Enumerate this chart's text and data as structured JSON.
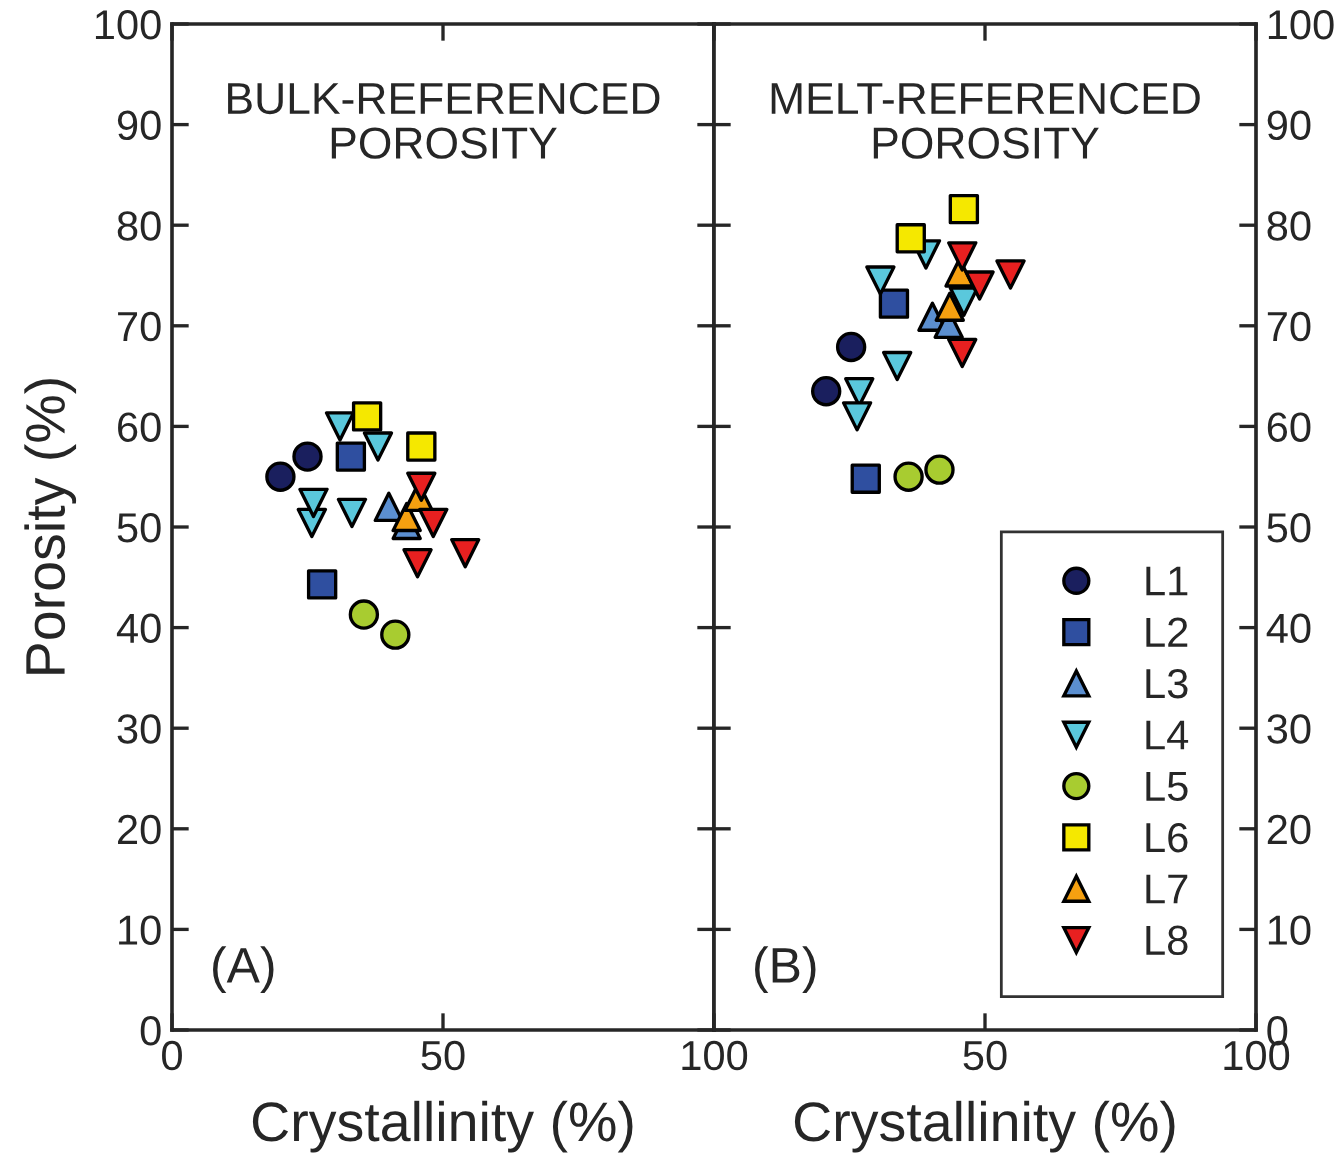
{
  "chart_data": [
    {
      "type": "scatter",
      "xlabel": "Crystallinity (%)",
      "ylabel": "Porosity (%)",
      "annotations": [
        "BULK-REFERENCED\nPOROSITY",
        "(A)"
      ],
      "xlim": [
        0,
        100
      ],
      "xticks": [
        0,
        50,
        100
      ],
      "ylim": [
        0,
        100
      ],
      "yticks": [
        0,
        10,
        20,
        30,
        40,
        50,
        60,
        70,
        80,
        90,
        100
      ],
      "grid": false,
      "legend": false,
      "series": [
        {
          "color": "#1a1f5e",
          "marker": "circle",
          "x": [
            20,
            25
          ],
          "values": [
            55,
            57
          ]
        },
        {
          "color": "#2f4fa0",
          "marker": "square",
          "x": [
            27.7,
            33
          ],
          "values": [
            44.3,
            57
          ]
        },
        {
          "color": "#5b8fd0",
          "marker": "triangle",
          "x": [
            40,
            43.3
          ],
          "values": [
            52,
            50.2
          ]
        },
        {
          "color": "#5ac8dc",
          "marker": "triangle_down",
          "x": [
            25.8,
            26.1,
            31,
            33.2,
            38
          ],
          "values": [
            50.4,
            52.4,
            60,
            51.4,
            58
          ]
        },
        {
          "color": "#a8cc30",
          "marker": "circle",
          "x": [
            35.4,
            41.2
          ],
          "values": [
            41.3,
            39.3
          ]
        },
        {
          "color": "#f5e800",
          "marker": "square",
          "x": [
            36,
            46
          ],
          "values": [
            61,
            58
          ]
        },
        {
          "color": "#f5a010",
          "marker": "triangle",
          "x": [
            43.3,
            45.5
          ],
          "values": [
            51,
            53
          ]
        },
        {
          "color": "#e82020",
          "marker": "triangle_down",
          "x": [
            46,
            48.2,
            45.3,
            54.1
          ],
          "values": [
            54,
            50.4,
            46.4,
            47.4
          ]
        }
      ]
    },
    {
      "type": "scatter",
      "xlabel": "Crystallinity (%)",
      "annotations": [
        "MELT-REFERENCED\nPOROSITY",
        "(B)"
      ],
      "xlim": [
        0,
        100
      ],
      "xticks": [
        {
          "value": 0,
          "label": null
        },
        50,
        100
      ],
      "y2lim": [
        0,
        100
      ],
      "y2ticks": [
        0,
        10,
        20,
        30,
        40,
        50,
        60,
        70,
        80,
        90,
        100
      ],
      "grid": false,
      "legend": "bottom right",
      "series": [
        {
          "name": "L1",
          "axis": "y2",
          "color": "#1a1f5e",
          "marker": "circle",
          "x": [
            25.3,
            20.7
          ],
          "values": [
            67.9,
            63.5
          ]
        },
        {
          "name": "L2",
          "axis": "y2",
          "color": "#2f4fa0",
          "marker": "square",
          "x": [
            33.2,
            28
          ],
          "values": [
            72.2,
            54.8
          ]
        },
        {
          "name": "L3",
          "axis": "y2",
          "color": "#5b8fd0",
          "marker": "triangle",
          "x": [
            40.3,
            43.3
          ],
          "values": [
            70.9,
            70.2
          ]
        },
        {
          "name": "L4",
          "axis": "y2",
          "color": "#5ac8dc",
          "marker": "triangle_down",
          "x": [
            30.7,
            39.1,
            33.8,
            26.8,
            26.4,
            46.1
          ],
          "values": [
            74.5,
            77.1,
            66,
            63.4,
            61,
            72.4
          ]
        },
        {
          "name": "L5",
          "axis": "y2",
          "color": "#a8cc30",
          "marker": "circle",
          "x": [
            35.9,
            41.6
          ],
          "values": [
            55,
            55.7
          ]
        },
        {
          "name": "L6",
          "axis": "y2",
          "color": "#f5e800",
          "marker": "square",
          "x": [
            36.3,
            46.1
          ],
          "values": [
            78.7,
            81.6
          ]
        },
        {
          "name": "L7",
          "axis": "y2",
          "color": "#f5a010",
          "marker": "triangle",
          "x": [
            45.3,
            43.5
          ],
          "values": [
            75.3,
            71.9
          ]
        },
        {
          "name": "L8",
          "axis": "y2",
          "color": "#e82020",
          "marker": "triangle_down",
          "x": [
            45.8,
            49,
            54.7,
            45.8
          ],
          "values": [
            76.9,
            74,
            75.1,
            67.3
          ]
        }
      ]
    }
  ]
}
